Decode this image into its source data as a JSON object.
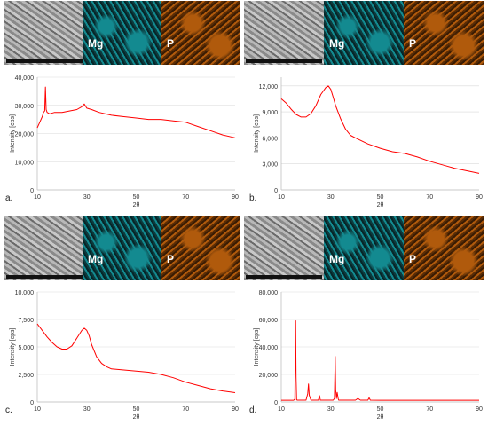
{
  "colors": {
    "trace": "#ff0000",
    "mg_map": "#138a90",
    "p_map": "#b05a0c"
  },
  "panels": [
    {
      "panel_label": "a.",
      "map_labels": {
        "mg": "Mg",
        "p": "P"
      },
      "chart_data": {
        "type": "line",
        "xlabel": "2θ",
        "ylabel": "Intensity [cps]",
        "xlim": [
          10,
          90
        ],
        "ylim": [
          0,
          40000
        ],
        "x_ticks": [
          10,
          30,
          50,
          70,
          90
        ],
        "y_ticks": [
          0,
          10000,
          20000,
          30000,
          40000
        ],
        "x_tick_labels": [
          "10",
          "30",
          "50",
          "70",
          "90"
        ],
        "y_tick_labels": [
          "0",
          "10,000",
          "20,000",
          "30,000",
          "40,000"
        ],
        "series": [
          {
            "x": [
              10,
              11,
              12,
              12.5,
              13,
              13.3,
              13.6,
              14,
              15,
              17,
              20,
              23,
              26,
              28,
              29,
              30,
              32,
              35,
              40,
              45,
              50,
              55,
              60,
              65,
              70,
              75,
              80,
              85,
              90
            ],
            "y": [
              22000,
              24000,
              26000,
              27500,
              28000,
              36500,
              28500,
              27500,
              27000,
              27500,
              27500,
              28000,
              28500,
              29500,
              30500,
              29000,
              28500,
              27500,
              26500,
              26000,
              25500,
              25000,
              25000,
              24500,
              24000,
              22500,
              21000,
              19500,
              18500
            ]
          }
        ]
      }
    },
    {
      "panel_label": "b.",
      "map_labels": {
        "mg": "Mg",
        "p": "P"
      },
      "chart_data": {
        "type": "line",
        "xlabel": "2θ",
        "ylabel": "Intensity [cps]",
        "xlim": [
          10,
          90
        ],
        "ylim": [
          0,
          13000
        ],
        "x_ticks": [
          10,
          30,
          50,
          70,
          90
        ],
        "y_ticks": [
          0,
          3000,
          6000,
          9000,
          12000
        ],
        "x_tick_labels": [
          "10",
          "30",
          "50",
          "70",
          "90"
        ],
        "y_tick_labels": [
          "0",
          "3,000",
          "6,000",
          "9,000",
          "12,000"
        ],
        "series": [
          {
            "x": [
              10,
              12,
              14,
              16,
              18,
              20,
              22,
              24,
              26,
              28,
              29,
              30,
              31,
              32,
              34,
              36,
              38,
              40,
              45,
              50,
              55,
              60,
              65,
              70,
              75,
              80,
              85,
              90
            ],
            "y": [
              10500,
              10000,
              9300,
              8700,
              8400,
              8400,
              8800,
              9700,
              11000,
              11800,
              12000,
              11600,
              10700,
              9700,
              8200,
              7000,
              6300,
              6000,
              5300,
              4800,
              4400,
              4200,
              3800,
              3300,
              2900,
              2500,
              2200,
              1900
            ]
          }
        ]
      }
    },
    {
      "panel_label": "c.",
      "map_labels": {
        "mg": "Mg",
        "p": "P"
      },
      "chart_data": {
        "type": "line",
        "xlabel": "2θ",
        "ylabel": "Intensity [cps]",
        "xlim": [
          10,
          90
        ],
        "ylim": [
          0,
          10000
        ],
        "x_ticks": [
          10,
          30,
          50,
          70,
          90
        ],
        "y_ticks": [
          0,
          2500,
          5000,
          7500,
          10000
        ],
        "x_tick_labels": [
          "10",
          "30",
          "50",
          "70",
          "90"
        ],
        "y_tick_labels": [
          "0",
          "2,500",
          "5,000",
          "7,500",
          "10,000"
        ],
        "series": [
          {
            "x": [
              10,
              12,
              14,
              16,
              18,
              20,
              22,
              24,
              26,
              28,
              29,
              30,
              31,
              32,
              34,
              36,
              38,
              40,
              45,
              50,
              55,
              60,
              65,
              70,
              75,
              80,
              85,
              90
            ],
            "y": [
              7100,
              6500,
              5900,
              5400,
              5000,
              4800,
              4800,
              5100,
              5800,
              6500,
              6700,
              6500,
              6000,
              5200,
              4100,
              3500,
              3200,
              3000,
              2900,
              2800,
              2700,
              2500,
              2200,
              1800,
              1500,
              1200,
              1000,
              850
            ]
          }
        ]
      }
    },
    {
      "panel_label": "d.",
      "map_labels": {
        "mg": "Mg",
        "p": "P"
      },
      "chart_data": {
        "type": "line",
        "xlabel": "2θ",
        "ylabel": "Intensity [cps]",
        "xlim": [
          10,
          90
        ],
        "ylim": [
          0,
          80000
        ],
        "x_ticks": [
          10,
          30,
          50,
          70,
          90
        ],
        "y_ticks": [
          0,
          20000,
          40000,
          60000,
          80000
        ],
        "x_tick_labels": [
          "10",
          "30",
          "50",
          "70",
          "90"
        ],
        "y_tick_labels": [
          "0",
          "20,000",
          "40,000",
          "60,000",
          "80,000"
        ],
        "series": [
          {
            "x": [
              10,
              15,
              15.5,
              15.8,
              16,
              16.2,
              16.5,
              20,
              20.7,
              21,
              21.3,
              22,
              25,
              25.5,
              25.8,
              28,
              31,
              31.5,
              31.8,
              32,
              32.3,
              32.6,
              33,
              33.2,
              33.5,
              36,
              40,
              41,
              42,
              45,
              45.5,
              46,
              50,
              55,
              60,
              70,
              80,
              90
            ],
            "y": [
              1200,
              1200,
              2000,
              59000,
              18000,
              1500,
              1300,
              1300,
              6000,
              13000,
              5000,
              1300,
              1300,
              4500,
              1300,
              1300,
              1300,
              2500,
              33000,
              9000,
              2500,
              7000,
              2500,
              1300,
              1300,
              1300,
              1300,
              2500,
              1300,
              1300,
              3000,
              1300,
              1200,
              1200,
              1200,
              1200,
              1200,
              1200
            ]
          }
        ]
      }
    }
  ]
}
